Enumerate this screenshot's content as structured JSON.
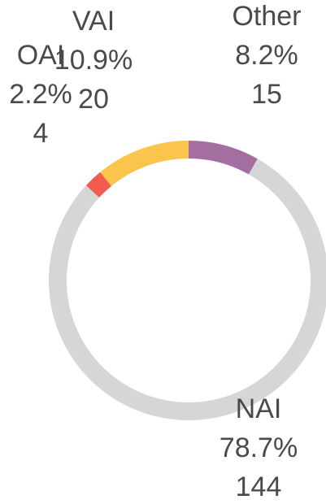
{
  "chart_data": {
    "type": "donut",
    "categories": [
      "Other",
      "NAI",
      "OAI",
      "VAI"
    ],
    "values": [
      8.2,
      78.7,
      2.2,
      10.9
    ],
    "value_labels": [
      "8.2%",
      "78.7%",
      "2.2%",
      "10.9%"
    ],
    "counts": [
      15,
      144,
      4,
      20
    ],
    "colors": [
      "#a56ea0",
      "#d6d6d6",
      "#f45b4f",
      "#fbc54d"
    ]
  }
}
